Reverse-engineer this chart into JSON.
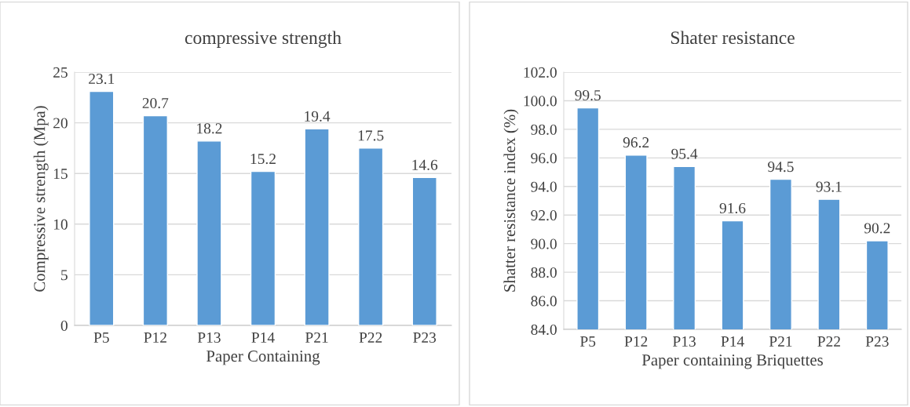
{
  "chart_data": [
    {
      "type": "bar",
      "title": "compressive strength",
      "xlabel": "Paper Containing",
      "ylabel": "Compressive strength (Mpa)",
      "categories": [
        "P5",
        "P12",
        "P13",
        "P14",
        "P21",
        "P22",
        "P23"
      ],
      "values": [
        23.1,
        20.7,
        18.2,
        15.2,
        19.4,
        17.5,
        14.6
      ],
      "color": "#5b9bd5",
      "ylim": [
        0,
        25
      ],
      "yticks": [
        0,
        5,
        10,
        15,
        20,
        25
      ],
      "grid": "y",
      "data_labels": true
    },
    {
      "type": "bar",
      "title": "Shater resistance",
      "xlabel": "Paper containing Briquettes",
      "ylabel": "Shatter resistance index (%)",
      "categories": [
        "P5",
        "P12",
        "P13",
        "P14",
        "P21",
        "P22",
        "P23"
      ],
      "values": [
        99.5,
        96.2,
        95.4,
        91.6,
        94.5,
        93.1,
        90.2
      ],
      "color": "#5b9bd5",
      "ylim": [
        84,
        102
      ],
      "yticks": [
        {
          "value": 84,
          "label": "84.0"
        },
        {
          "value": 86,
          "label": "86.0"
        },
        {
          "value": 88,
          "label": "88.0"
        },
        {
          "value": 90,
          "label": "90.0"
        },
        {
          "value": 92,
          "label": "92.0"
        },
        {
          "value": 94,
          "label": "94.0"
        },
        {
          "value": 96,
          "label": "96.0"
        },
        {
          "value": 98,
          "label": "98.0"
        },
        {
          "value": 100,
          "label": "100.0"
        },
        {
          "value": 102,
          "label": "102.0"
        }
      ],
      "grid": "y",
      "data_labels": true
    }
  ]
}
